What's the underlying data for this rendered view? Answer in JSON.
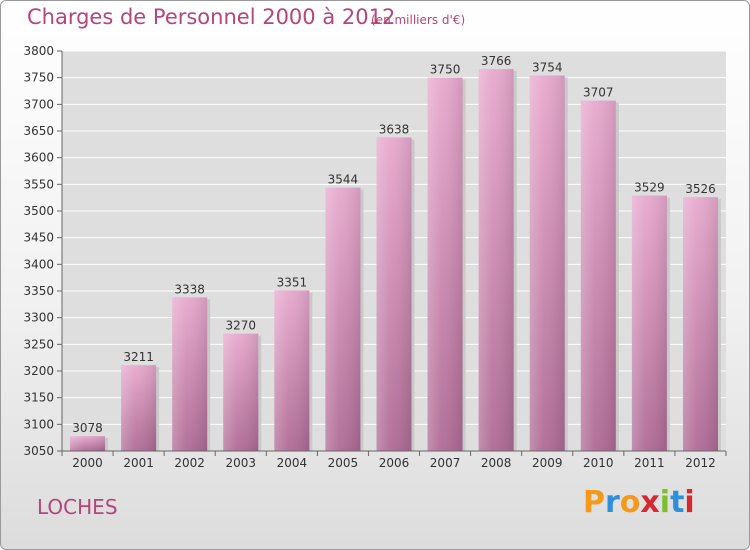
{
  "title": "Charges de Personnel 2000 à 2012",
  "subtitle": "(en milliers d'€)",
  "city": "LOCHES",
  "brand": {
    "letters": [
      "P",
      "r",
      "o",
      "x",
      "i",
      "t",
      "i"
    ],
    "colors": [
      "#f39a1d",
      "#2f8fd8",
      "#f39a1d",
      "#d6282f",
      "#7cbf2a",
      "#2f8fd8",
      "#d6282f"
    ]
  },
  "chart_data": {
    "type": "bar",
    "categories": [
      "2000",
      "2001",
      "2002",
      "2003",
      "2004",
      "2005",
      "2006",
      "2007",
      "2008",
      "2009",
      "2010",
      "2011",
      "2012"
    ],
    "values": [
      3078,
      3211,
      3338,
      3270,
      3351,
      3544,
      3638,
      3750,
      3766,
      3754,
      3707,
      3529,
      3526
    ],
    "ylim": [
      3050,
      3800
    ],
    "yticks": [
      3050,
      3100,
      3150,
      3200,
      3250,
      3300,
      3350,
      3400,
      3450,
      3500,
      3550,
      3600,
      3650,
      3700,
      3750,
      3800
    ],
    "grid": true,
    "bar_color": "#d98ab5"
  }
}
